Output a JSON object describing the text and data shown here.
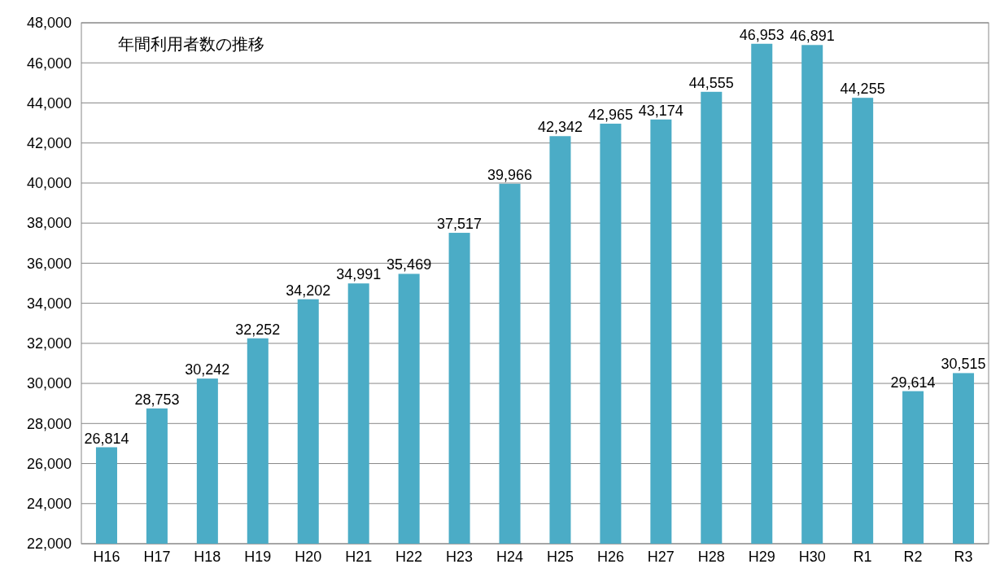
{
  "chart_data": {
    "type": "bar",
    "title": "年間利用者数の推移",
    "categories": [
      "H16",
      "H17",
      "H18",
      "H19",
      "H20",
      "H21",
      "H22",
      "H23",
      "H24",
      "H25",
      "H26",
      "H27",
      "H28",
      "H29",
      "H30",
      "R1",
      "R2",
      "R3"
    ],
    "values": [
      26814,
      28753,
      30242,
      32252,
      34202,
      34991,
      35469,
      37517,
      39966,
      42342,
      42965,
      43174,
      44555,
      46953,
      46891,
      44255,
      29614,
      30515
    ],
    "color": "#4bacc6",
    "ylim": [
      22000,
      48000
    ],
    "yticks": [
      {
        "value": 22000,
        "label": "22,000"
      },
      {
        "value": 24000,
        "label": "24,000"
      },
      {
        "value": 26000,
        "label": "26,000"
      },
      {
        "value": 28000,
        "label": "28,000"
      },
      {
        "value": 30000,
        "label": "30,000"
      },
      {
        "value": 32000,
        "label": "32,000"
      },
      {
        "value": 34000,
        "label": "34,000"
      },
      {
        "value": 36000,
        "label": "36,000"
      },
      {
        "value": 38000,
        "label": "38,000"
      },
      {
        "value": 40000,
        "label": "40,000"
      },
      {
        "value": 42000,
        "label": "42,000"
      },
      {
        "value": 44000,
        "label": "44,000"
      },
      {
        "value": 46000,
        "label": "46,000"
      },
      {
        "value": 48000,
        "label": "48,000"
      }
    ],
    "value_labels": [
      "26,814",
      "28,753",
      "30,242",
      "32,252",
      "34,202",
      "34,991",
      "35,469",
      "37,517",
      "39,966",
      "42,342",
      "42,965",
      "43,174",
      "44,555",
      "46,953",
      "46,891",
      "44,255",
      "29,614",
      "30,515"
    ],
    "grid": "y"
  }
}
